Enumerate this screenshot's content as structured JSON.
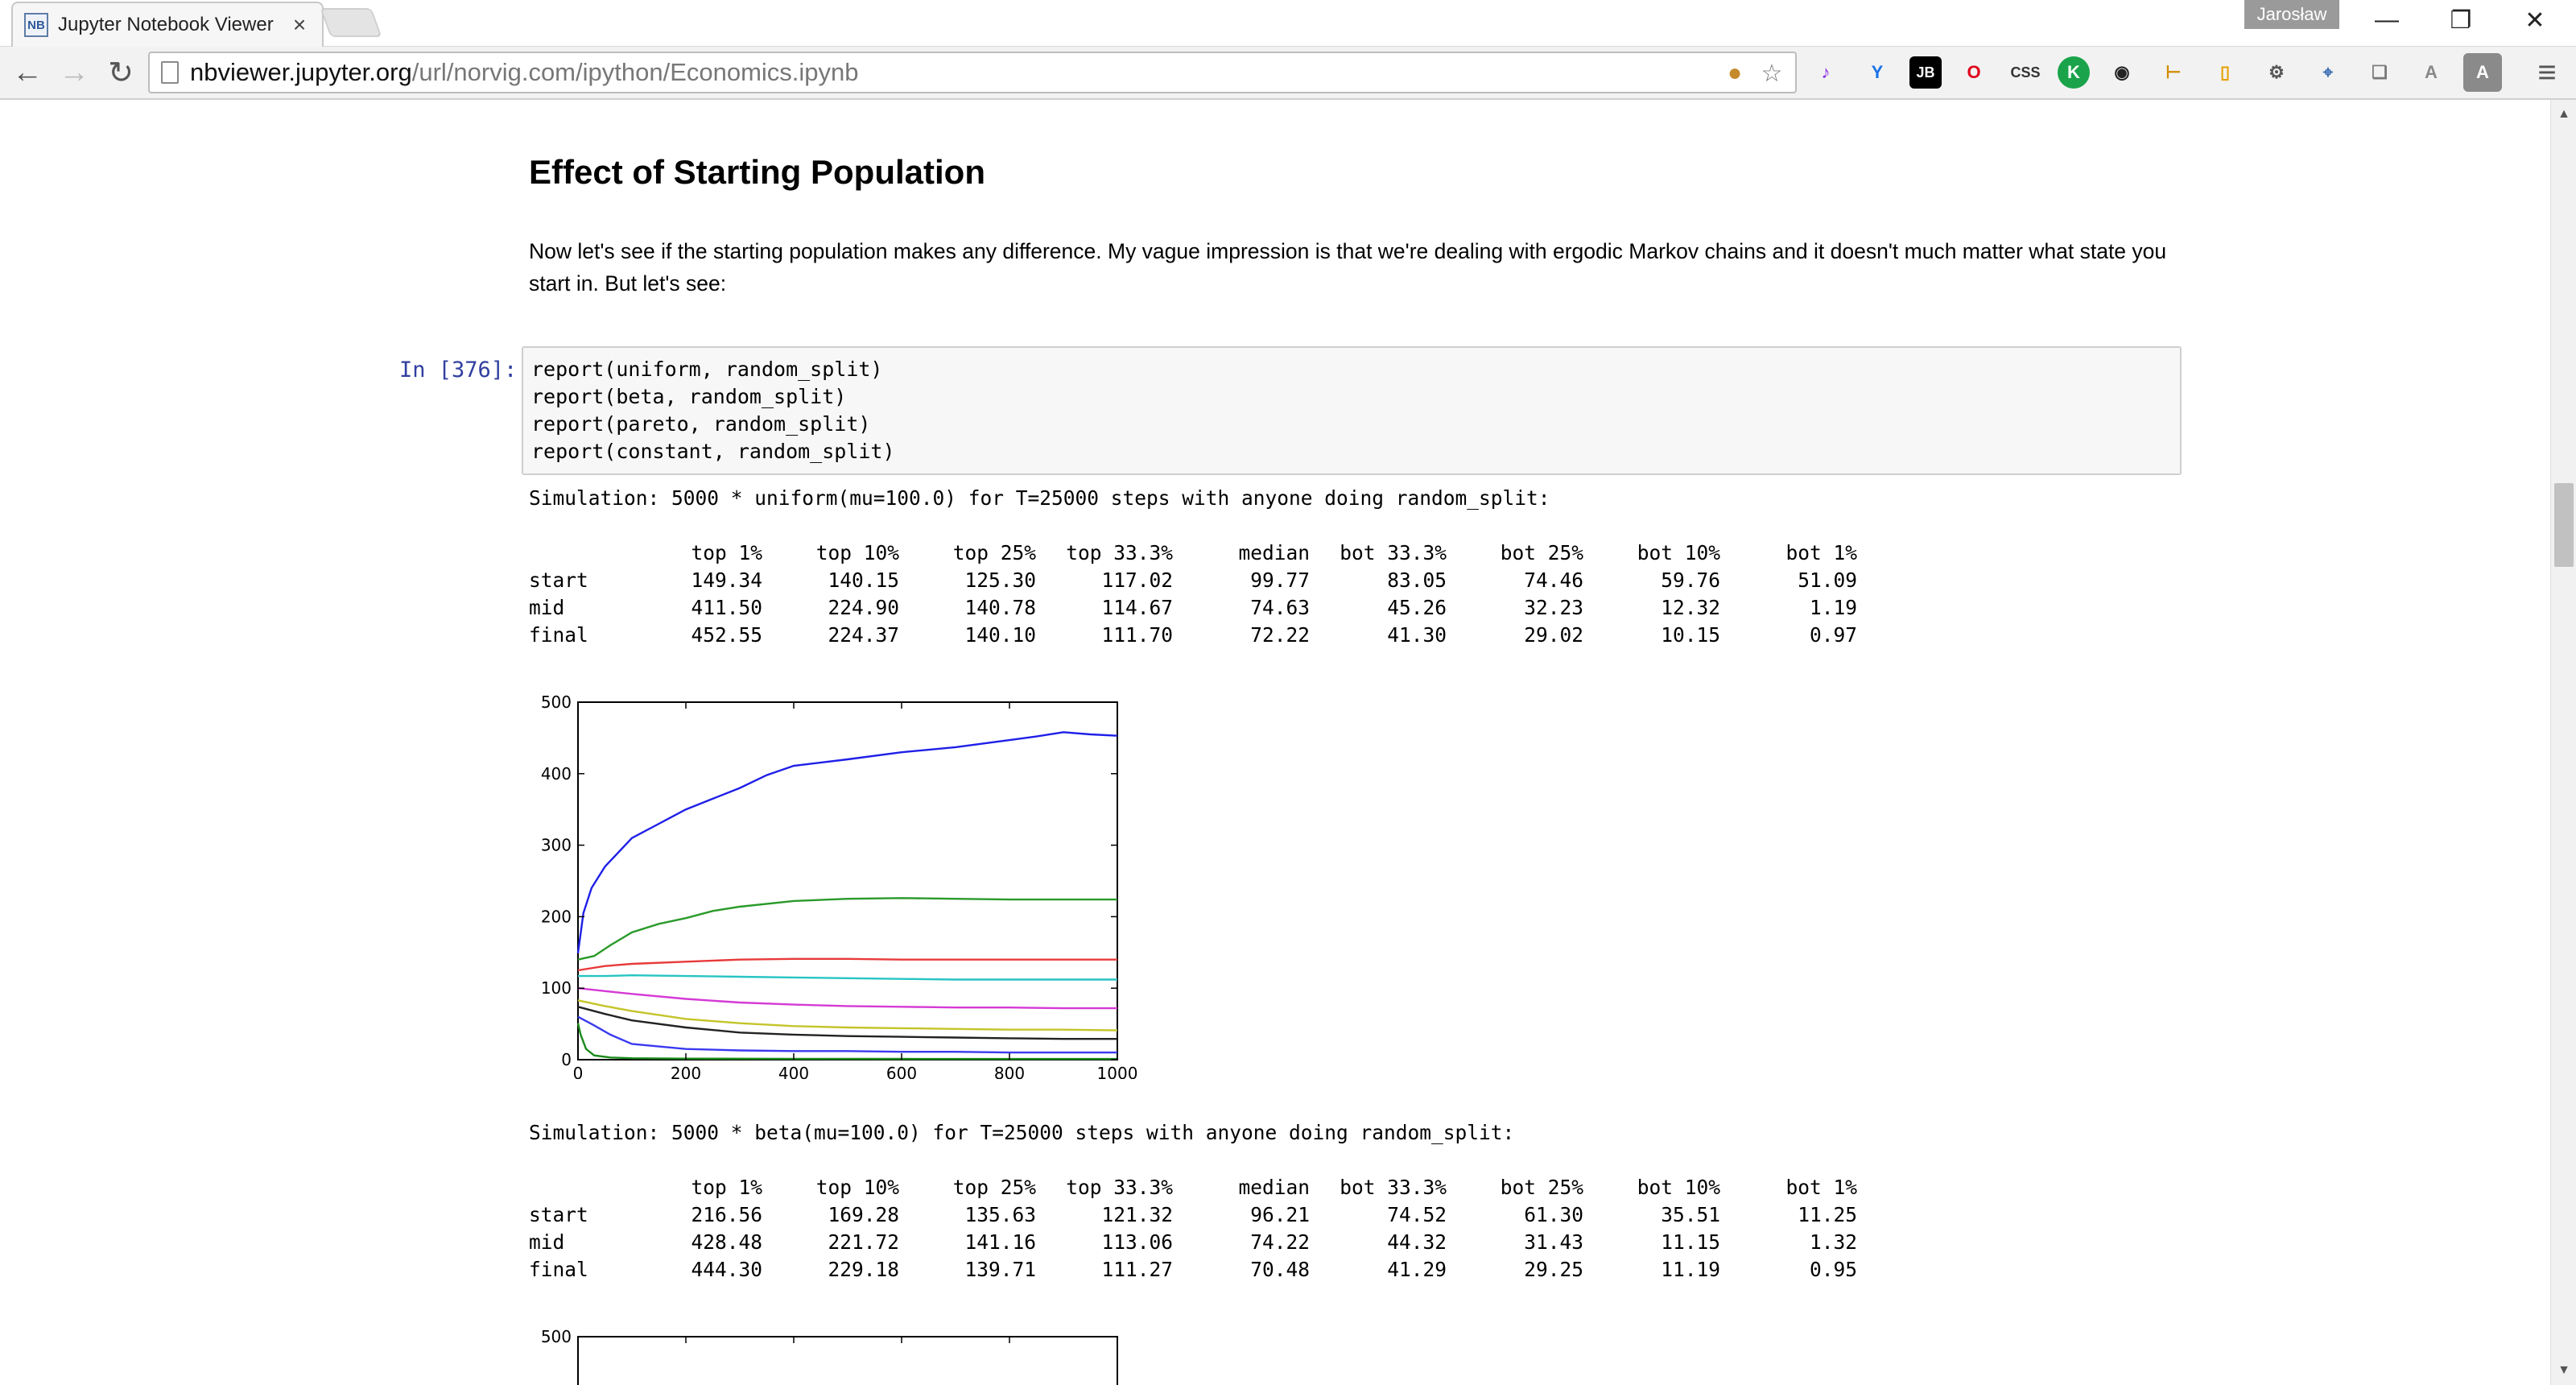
{
  "browser": {
    "tab_title": "Jupyter Notebook Viewer",
    "tab_favicon": "NB",
    "tab_close": "×",
    "profile_name": "Jarosław",
    "url_host": "nbviewer.jupyter.org",
    "url_path": "/url/norvig.com/ipython/Economics.ipynb",
    "window_controls": {
      "minimize": "—",
      "restore": "❐",
      "close": "✕"
    },
    "nav": {
      "back": "←",
      "forward": "→",
      "reload": "↻"
    },
    "extensions": [
      {
        "name": "music-note-icon",
        "glyph": "♪",
        "color": "#8a2be2"
      },
      {
        "name": "y-extension-icon",
        "glyph": "Y",
        "color": "#1a73e8"
      },
      {
        "name": "jetbrains-icon",
        "glyph": "JB",
        "color": "#000000"
      },
      {
        "name": "opera-icon",
        "glyph": "O",
        "color": "#e0001b"
      },
      {
        "name": "css-icon",
        "glyph": "CSS",
        "color": "#333333"
      },
      {
        "name": "k-extension-icon",
        "glyph": "K",
        "color": "#1aa34a"
      },
      {
        "name": "color-picker-icon",
        "glyph": "◉",
        "color": "#222222"
      },
      {
        "name": "ruler-icon",
        "glyph": "⊢",
        "color": "#d18b00"
      },
      {
        "name": "document-icon",
        "glyph": "▯",
        "color": "#e6a100"
      },
      {
        "name": "robot-icon",
        "glyph": "⚙",
        "color": "#555555"
      },
      {
        "name": "satellite-icon",
        "glyph": "⌖",
        "color": "#3d6fb4"
      },
      {
        "name": "layers-icon",
        "glyph": "❏",
        "color": "#777777"
      },
      {
        "name": "angular-icon",
        "glyph": "A",
        "color": "#888888"
      },
      {
        "name": "text-a-icon",
        "glyph": "A",
        "color": "#ffffff"
      }
    ],
    "menu_glyph": "≡"
  },
  "notebook": {
    "section_title": "Effect of Starting Population",
    "intro": "Now let's see if the starting population makes any difference. My vague impression is that we're dealing with ergodic Markov chains and it doesn't much matter what state you start in. But let's see:",
    "prompt": "In [376]:",
    "code_lines": [
      "report(uniform, random_split)",
      "report(beta, random_split)",
      "report(pareto, random_split)",
      "report(constant, random_split)"
    ],
    "outputs": [
      {
        "header": "Simulation: 5000 * uniform(mu=100.0) for T=25000 steps with anyone doing random_split:",
        "columns": [
          "top 1%",
          "top 10%",
          "top 25%",
          "top 33.3%",
          "median",
          "bot 33.3%",
          "bot 25%",
          "bot 10%",
          "bot 1%"
        ],
        "rows": [
          {
            "label": "start",
            "values": [
              "149.34",
              "140.15",
              "125.30",
              "117.02",
              "99.77",
              "83.05",
              "74.46",
              "59.76",
              "51.09"
            ]
          },
          {
            "label": "mid",
            "values": [
              "411.50",
              "224.90",
              "140.78",
              "114.67",
              "74.63",
              "45.26",
              "32.23",
              "12.32",
              "1.19"
            ]
          },
          {
            "label": "final",
            "values": [
              "452.55",
              "224.37",
              "140.10",
              "111.70",
              "72.22",
              "41.30",
              "29.02",
              "10.15",
              "0.97"
            ]
          }
        ]
      },
      {
        "header": "Simulation: 5000 * beta(mu=100.0) for T=25000 steps with anyone doing random_split:",
        "columns": [
          "top 1%",
          "top 10%",
          "top 25%",
          "top 33.3%",
          "median",
          "bot 33.3%",
          "bot 25%",
          "bot 10%",
          "bot 1%"
        ],
        "rows": [
          {
            "label": "start",
            "values": [
              "216.56",
              "169.28",
              "135.63",
              "121.32",
              "96.21",
              "74.52",
              "61.30",
              "35.51",
              "11.25"
            ]
          },
          {
            "label": "mid",
            "values": [
              "428.48",
              "221.72",
              "141.16",
              "113.06",
              "74.22",
              "44.32",
              "31.43",
              "11.15",
              "1.32"
            ]
          },
          {
            "label": "final",
            "values": [
              "444.30",
              "229.18",
              "139.71",
              "111.27",
              "70.48",
              "41.29",
              "29.25",
              "11.19",
              "0.95"
            ]
          }
        ]
      }
    ]
  },
  "chart_data": [
    {
      "type": "line",
      "xlim": [
        0,
        1000
      ],
      "ylim": [
        0,
        500
      ],
      "xticks": [
        "0",
        "200",
        "400",
        "600",
        "800",
        "1000"
      ],
      "yticks": [
        "0",
        "100",
        "200",
        "300",
        "400",
        "500"
      ],
      "grid": false,
      "series": [
        {
          "color": "#1f1fe8",
          "x": [
            0,
            10,
            25,
            50,
            100,
            150,
            200,
            250,
            300,
            350,
            400,
            500,
            600,
            700,
            800,
            850,
            900,
            950,
            1000
          ],
          "y": [
            149,
            205,
            240,
            270,
            310,
            330,
            350,
            365,
            380,
            398,
            411,
            420,
            430,
            437,
            447,
            452,
            458,
            455,
            453
          ]
        },
        {
          "color": "#2a9a2a",
          "x": [
            0,
            30,
            60,
            100,
            150,
            200,
            250,
            300,
            400,
            500,
            600,
            700,
            800,
            900,
            1000
          ],
          "y": [
            140,
            145,
            160,
            178,
            190,
            198,
            208,
            214,
            222,
            225,
            226,
            225,
            224,
            224,
            224
          ]
        },
        {
          "color": "#e83a3a",
          "x": [
            0,
            50,
            100,
            200,
            300,
            400,
            500,
            600,
            700,
            800,
            900,
            1000
          ],
          "y": [
            125,
            131,
            134,
            137,
            140,
            141,
            141,
            140,
            140,
            140,
            140,
            140
          ]
        },
        {
          "color": "#28c4c4",
          "x": [
            0,
            50,
            100,
            200,
            300,
            400,
            500,
            600,
            700,
            800,
            900,
            1000
          ],
          "y": [
            117,
            117,
            118,
            117,
            116,
            115,
            114,
            113,
            112,
            112,
            112,
            112
          ]
        },
        {
          "color": "#d53ad5",
          "x": [
            0,
            50,
            100,
            200,
            300,
            400,
            500,
            600,
            700,
            800,
            900,
            1000
          ],
          "y": [
            100,
            96,
            92,
            85,
            80,
            77,
            75,
            74,
            73,
            73,
            72,
            72
          ]
        },
        {
          "color": "#c4c42a",
          "x": [
            0,
            50,
            100,
            200,
            300,
            400,
            500,
            600,
            700,
            800,
            900,
            1000
          ],
          "y": [
            83,
            75,
            68,
            57,
            51,
            47,
            45,
            44,
            43,
            42,
            42,
            41
          ]
        },
        {
          "color": "#222222",
          "x": [
            0,
            50,
            100,
            200,
            300,
            400,
            500,
            600,
            700,
            800,
            900,
            1000
          ],
          "y": [
            74,
            64,
            55,
            45,
            38,
            35,
            33,
            32,
            31,
            30,
            29,
            29
          ]
        },
        {
          "color": "#3a3af0",
          "x": [
            0,
            30,
            60,
            100,
            200,
            300,
            400,
            500,
            600,
            700,
            800,
            900,
            1000
          ],
          "y": [
            60,
            48,
            35,
            22,
            15,
            13,
            12,
            12,
            11,
            11,
            10,
            10,
            10
          ]
        },
        {
          "color": "#1a8a1a",
          "x": [
            0,
            5,
            15,
            30,
            60,
            100,
            200,
            400,
            600,
            800,
            1000
          ],
          "y": [
            51,
            35,
            15,
            6,
            3,
            2,
            1.5,
            1.2,
            1.1,
            1,
            1
          ]
        }
      ]
    },
    {
      "type": "line",
      "xlim": [
        0,
        1000
      ],
      "ylim": [
        0,
        500
      ],
      "yticks": [
        "500"
      ],
      "grid": false,
      "series": []
    }
  ]
}
